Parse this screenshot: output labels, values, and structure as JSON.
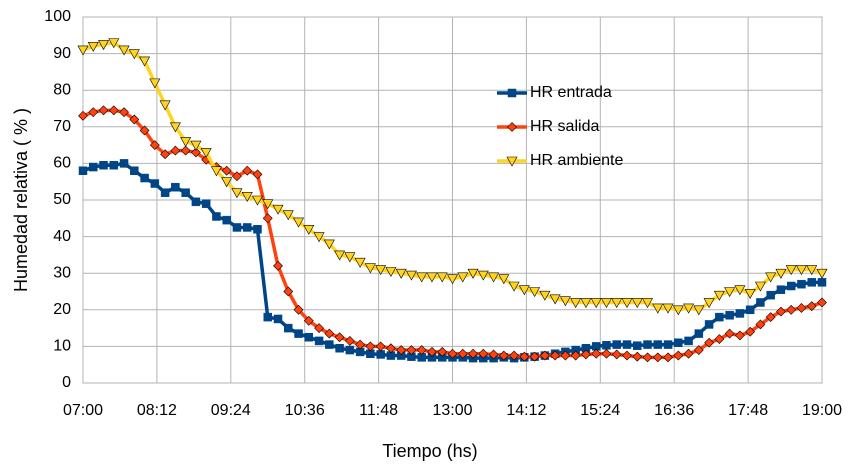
{
  "chart_data": {
    "type": "line",
    "xlabel": "Tiempo (hs)",
    "ylabel": "Humedad relativa ( % )",
    "x": [
      420,
      430,
      440,
      450,
      460,
      470,
      480,
      490,
      500,
      510,
      520,
      530,
      540,
      550,
      560,
      570,
      580,
      590,
      600,
      610,
      620,
      630,
      640,
      650,
      660,
      670,
      680,
      690,
      700,
      710,
      720,
      730,
      740,
      750,
      760,
      770,
      780,
      790,
      800,
      810,
      820,
      830,
      840,
      850,
      860,
      870,
      880,
      890,
      900,
      910,
      920,
      930,
      940,
      950,
      960,
      970,
      980,
      990,
      1000,
      1010,
      1020,
      1030,
      1040,
      1050,
      1060,
      1070,
      1080,
      1090,
      1100,
      1110,
      1120,
      1130,
      1140
    ],
    "series": [
      {
        "name": "HR entrada",
        "color": "#004586",
        "marker": "square",
        "values": [
          58,
          59,
          59.5,
          59.5,
          60,
          58,
          56,
          54.5,
          52,
          53.5,
          52,
          49.5,
          49,
          45.5,
          44.5,
          42.5,
          42.5,
          42,
          18,
          17.5,
          15,
          13.5,
          12.5,
          11.5,
          10.5,
          9.5,
          9,
          8.5,
          8,
          7.8,
          7.5,
          7.5,
          7.2,
          7,
          7,
          7,
          7,
          7,
          6.8,
          6.8,
          6.8,
          7,
          6.8,
          7,
          7.2,
          7.5,
          8,
          8.5,
          9,
          9.5,
          10,
          10.3,
          10.5,
          10.5,
          10.2,
          10.5,
          10.5,
          10.5,
          11,
          11.5,
          13.5,
          16,
          18,
          18.5,
          19,
          20,
          22,
          24,
          25.5,
          26.5,
          27,
          27.5,
          27.5
        ]
      },
      {
        "name": "HR salida",
        "color": "#ff420e",
        "marker": "diamond",
        "values": [
          73,
          74,
          74.5,
          74.5,
          74,
          72,
          69,
          65,
          62.5,
          63.5,
          63.5,
          63,
          61,
          59,
          58,
          56.5,
          58,
          57,
          45,
          32,
          25,
          20,
          17,
          15,
          13.5,
          12.5,
          11.5,
          10.5,
          10,
          10,
          9.5,
          9,
          9,
          9,
          8.5,
          8.5,
          8,
          8,
          8,
          8,
          7.8,
          7.5,
          7.5,
          7.2,
          7.2,
          7.5,
          7.5,
          7.5,
          7.5,
          7.8,
          8,
          8,
          7.8,
          7.5,
          7.2,
          7,
          7,
          7,
          7.5,
          8,
          9,
          11,
          12,
          13.5,
          13,
          14,
          16,
          18,
          19.5,
          20,
          20.5,
          21,
          22
        ]
      },
      {
        "name": "HR ambiente",
        "color": "#ffd320",
        "marker": "triangle",
        "values": [
          91,
          92,
          92.5,
          93,
          91,
          90,
          88,
          82,
          76,
          70,
          66,
          65,
          63,
          58,
          55,
          52,
          51,
          50,
          49,
          47.5,
          46,
          44,
          42,
          40,
          38,
          35,
          34.5,
          33,
          31.5,
          31,
          30.5,
          30,
          29.5,
          29,
          29,
          29,
          28.5,
          29,
          30,
          29.5,
          29,
          28.5,
          26.5,
          25.5,
          25,
          24,
          23,
          22.5,
          22,
          22,
          22,
          22,
          22,
          22,
          22,
          22,
          20.5,
          20.5,
          20,
          20.5,
          20,
          22,
          24,
          25,
          25.5,
          24.5,
          26.5,
          29,
          30,
          31,
          31,
          31,
          30
        ]
      }
    ],
    "xlim": [
      420,
      1140
    ],
    "xticks": [
      {
        "value": 420,
        "label": "07:00"
      },
      {
        "value": 492,
        "label": "08:12"
      },
      {
        "value": 564,
        "label": "09:24"
      },
      {
        "value": 636,
        "label": "10:36"
      },
      {
        "value": 708,
        "label": "11:48"
      },
      {
        "value": 780,
        "label": "13:00"
      },
      {
        "value": 852,
        "label": "14:12"
      },
      {
        "value": 924,
        "label": "15:24"
      },
      {
        "value": 996,
        "label": "16:36"
      },
      {
        "value": 1068,
        "label": "17:48"
      },
      {
        "value": 1140,
        "label": "19:00"
      }
    ],
    "ylim": [
      0,
      100
    ],
    "yticks": [
      0,
      10,
      20,
      30,
      40,
      50,
      60,
      70,
      80,
      90,
      100
    ],
    "grid": true,
    "legend": "upper-right-inside"
  }
}
